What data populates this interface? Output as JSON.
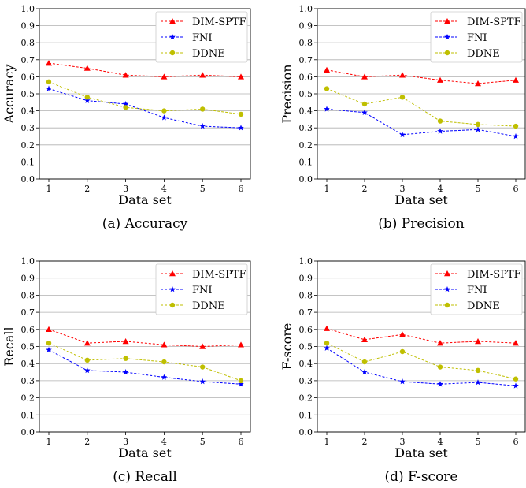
{
  "colors": {
    "DIM-SPTF": "#ff0000",
    "FNI": "#0000ff",
    "DDNE": "#bfbf00"
  },
  "chart_data": [
    {
      "type": "line",
      "caption": "(a)  Accuracy",
      "xlabel": "Data set",
      "ylabel": "Accuracy",
      "x": [
        1,
        2,
        3,
        4,
        5,
        6
      ],
      "ylim": [
        0,
        1.0
      ],
      "yticks": [
        "0.0",
        "0.1",
        "0.2",
        "0.3",
        "0.4",
        "0.5",
        "0.6",
        "0.7",
        "0.8",
        "0.9",
        "1.0"
      ],
      "grid": "horizontal",
      "legend": "top-right",
      "series": [
        {
          "name": "DIM-SPTF",
          "marker": "triangle",
          "values": [
            0.68,
            0.65,
            0.61,
            0.6,
            0.61,
            0.6
          ]
        },
        {
          "name": "FNI",
          "marker": "star",
          "values": [
            0.53,
            0.46,
            0.44,
            0.36,
            0.31,
            0.3
          ]
        },
        {
          "name": "DDNE",
          "marker": "circle",
          "values": [
            0.57,
            0.48,
            0.42,
            0.4,
            0.41,
            0.38
          ]
        }
      ]
    },
    {
      "type": "line",
      "caption": "(b)  Precision",
      "xlabel": "Data set",
      "ylabel": "Precision",
      "x": [
        1,
        2,
        3,
        4,
        5,
        6
      ],
      "ylim": [
        0,
        1.0
      ],
      "yticks": [
        "0.0",
        "0.1",
        "0.2",
        "0.3",
        "0.4",
        "0.5",
        "0.6",
        "0.7",
        "0.8",
        "0.9",
        "1.0"
      ],
      "grid": "horizontal",
      "legend": "top-right",
      "series": [
        {
          "name": "DIM-SPTF",
          "marker": "triangle",
          "values": [
            0.64,
            0.6,
            0.61,
            0.58,
            0.56,
            0.58
          ]
        },
        {
          "name": "FNI",
          "marker": "star",
          "values": [
            0.41,
            0.39,
            0.26,
            0.28,
            0.29,
            0.25
          ]
        },
        {
          "name": "DDNE",
          "marker": "circle",
          "values": [
            0.53,
            0.44,
            0.48,
            0.34,
            0.32,
            0.31
          ]
        }
      ]
    },
    {
      "type": "line",
      "caption": "(c)  Recall",
      "xlabel": "Data set",
      "ylabel": "Recall",
      "x": [
        1,
        2,
        3,
        4,
        5,
        6
      ],
      "ylim": [
        0,
        1.0
      ],
      "yticks": [
        "0.0",
        "0.1",
        "0.2",
        "0.3",
        "0.4",
        "0.5",
        "0.6",
        "0.7",
        "0.8",
        "0.9",
        "1.0"
      ],
      "grid": "horizontal",
      "legend": "top-right",
      "series": [
        {
          "name": "DIM-SPTF",
          "marker": "triangle",
          "values": [
            0.6,
            0.52,
            0.53,
            0.51,
            0.5,
            0.51
          ]
        },
        {
          "name": "FNI",
          "marker": "star",
          "values": [
            0.48,
            0.36,
            0.35,
            0.32,
            0.295,
            0.28
          ]
        },
        {
          "name": "DDNE",
          "marker": "circle",
          "values": [
            0.52,
            0.42,
            0.43,
            0.41,
            0.38,
            0.3
          ]
        }
      ]
    },
    {
      "type": "line",
      "caption": "(d)  F-score",
      "xlabel": "Data set",
      "ylabel": "F-score",
      "x": [
        1,
        2,
        3,
        4,
        5,
        6
      ],
      "ylim": [
        0,
        1.0
      ],
      "yticks": [
        "0.0",
        "0.1",
        "0.2",
        "0.3",
        "0.4",
        "0.5",
        "0.6",
        "0.7",
        "0.8",
        "0.9",
        "1.0"
      ],
      "grid": "horizontal",
      "legend": "top-right",
      "series": [
        {
          "name": "DIM-SPTF",
          "marker": "triangle",
          "values": [
            0.605,
            0.54,
            0.57,
            0.52,
            0.53,
            0.52
          ]
        },
        {
          "name": "FNI",
          "marker": "star",
          "values": [
            0.49,
            0.35,
            0.295,
            0.28,
            0.29,
            0.27
          ]
        },
        {
          "name": "DDNE",
          "marker": "circle",
          "values": [
            0.52,
            0.41,
            0.47,
            0.38,
            0.36,
            0.31
          ]
        }
      ]
    }
  ]
}
